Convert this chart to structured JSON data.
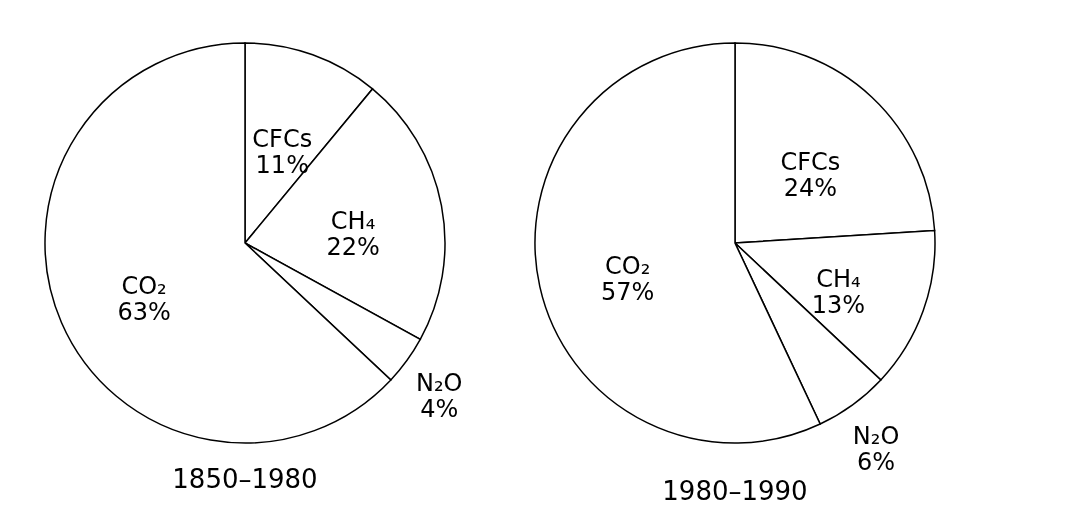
{
  "chart_data": [
    {
      "type": "pie",
      "title": "1850–1980",
      "categories": [
        "CFCs",
        "CH₄",
        "N₂O",
        "CO₂"
      ],
      "values": [
        11,
        22,
        4,
        63
      ],
      "colors": [
        "#ffffff",
        "#ffffff",
        "#ffffff",
        "#ffffff"
      ],
      "value_labels": [
        "11%",
        "22%",
        "4%",
        "63%"
      ]
    },
    {
      "type": "pie",
      "title": "1980–1990",
      "categories": [
        "CFCs",
        "CH₄",
        "N₂O",
        "CO₂"
      ],
      "values": [
        24,
        13,
        6,
        57
      ],
      "colors": [
        "#ffffff",
        "#ffffff",
        "#ffffff",
        "#ffffff"
      ],
      "value_labels": [
        "24%",
        "13%",
        "6%",
        "57%"
      ]
    }
  ]
}
